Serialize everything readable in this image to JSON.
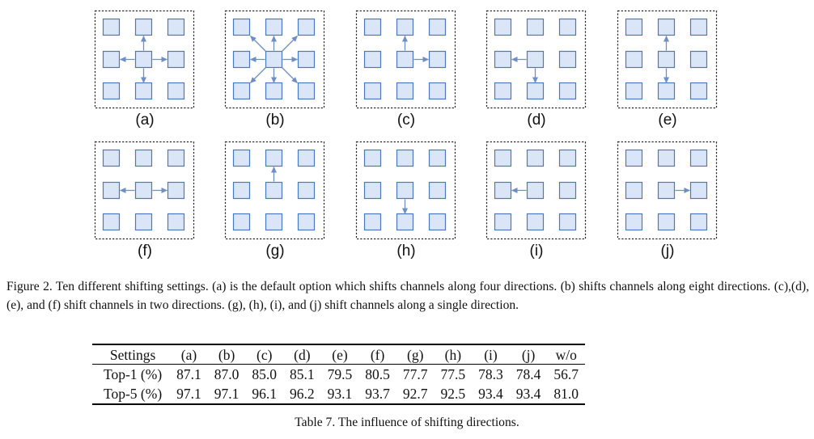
{
  "figure": {
    "colors": {
      "box_fill": "#dae6f8",
      "box_stroke": "#4b79bf",
      "arrow": "#6f8fc4",
      "frame": "#222222"
    },
    "panels": [
      {
        "label": "(a)",
        "arrows": [
          "up",
          "left",
          "right",
          "down"
        ]
      },
      {
        "label": "(b)",
        "arrows": [
          "up",
          "down",
          "left",
          "right",
          "up-left",
          "up-right",
          "down-left",
          "down-right"
        ]
      },
      {
        "label": "(c)",
        "arrows": [
          "up",
          "right"
        ]
      },
      {
        "label": "(d)",
        "arrows": [
          "left",
          "down"
        ]
      },
      {
        "label": "(e)",
        "arrows": [
          "up",
          "down"
        ]
      },
      {
        "label": "(f)",
        "arrows": [
          "left",
          "right"
        ]
      },
      {
        "label": "(g)",
        "arrows": [
          "up"
        ]
      },
      {
        "label": "(h)",
        "arrows": [
          "down"
        ]
      },
      {
        "label": "(i)",
        "arrows": [
          "left"
        ]
      },
      {
        "label": "(j)",
        "arrows": [
          "right"
        ]
      }
    ]
  },
  "figure_caption": "Figure 2. Ten different shifting settings. (a) is the default option which shifts channels along four directions. (b) shifts channels along eight directions. (c),(d),(e), and (f) shift channels in two directions. (g), (h), (i), and (j) shift channels along a single direction.",
  "table": {
    "header": [
      "Settings",
      "(a)",
      "(b)",
      "(c)",
      "(d)",
      "(e)",
      "(f)",
      "(g)",
      "(h)",
      "(i)",
      "(j)",
      "w/o"
    ],
    "rows": [
      [
        "Top-1 (%)",
        "87.1",
        "87.0",
        "85.0",
        "85.1",
        "79.5",
        "80.5",
        "77.7",
        "77.5",
        "78.3",
        "78.4",
        "56.7"
      ],
      [
        "Top-5 (%)",
        "97.1",
        "97.1",
        "96.1",
        "96.2",
        "93.1",
        "93.7",
        "92.7",
        "92.5",
        "93.4",
        "93.4",
        "81.0"
      ]
    ]
  },
  "table_caption": "Table 7. The influence of shifting directions."
}
